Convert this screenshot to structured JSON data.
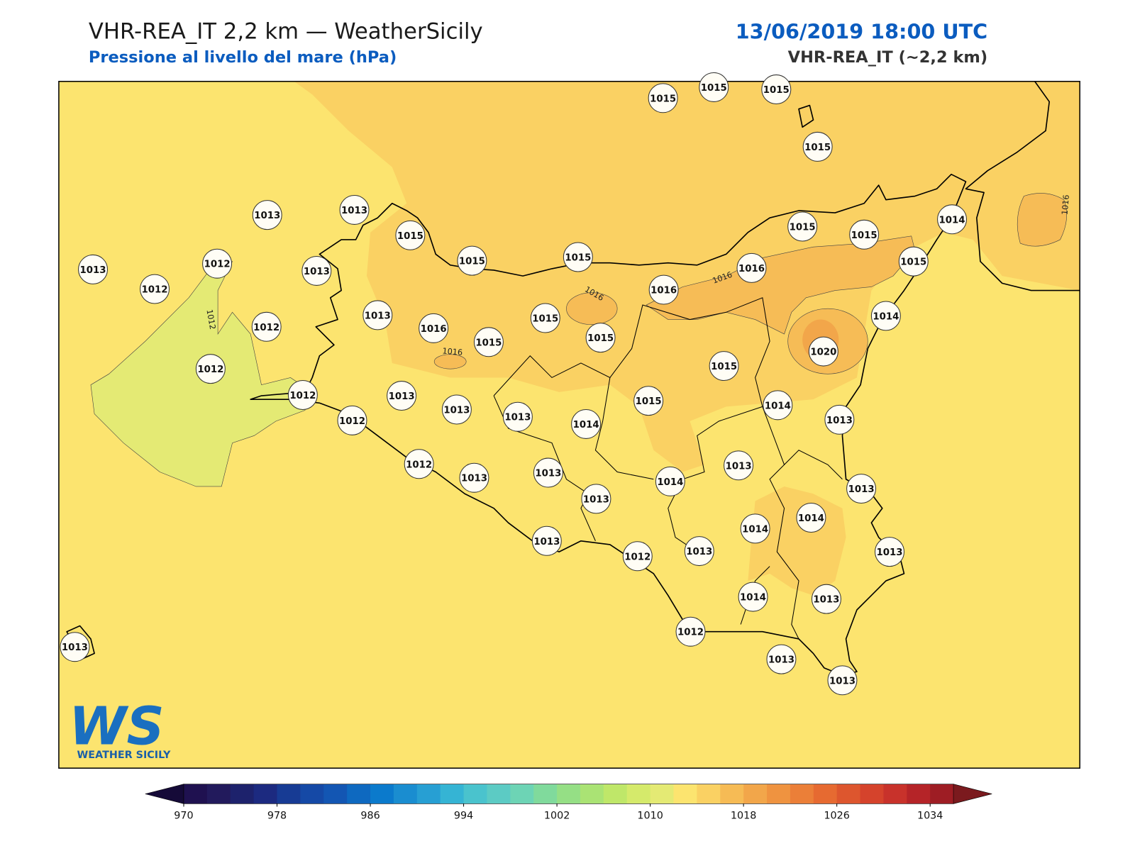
{
  "header": {
    "title": "VHR-REA_IT 2,2 km — WeatherSicily",
    "subtitle": "Pressione al livello del mare (hPa)",
    "datetime": "13/06/2019 18:00 UTC",
    "model": "VHR-REA_IT (~2,2 km)"
  },
  "map": {
    "stations": [
      1015,
      1015,
      1015,
      1015,
      1013,
      1013,
      1015,
      1015,
      1015,
      1015,
      1015,
      1014,
      1015,
      1013,
      1012,
      1012,
      1013,
      1016,
      1016,
      1014,
      1013,
      1012,
      1016,
      1015,
      1015,
      1015,
      1020,
      1012,
      1015,
      1012,
      1013,
      1013,
      1013,
      1014,
      1015,
      1014,
      1013,
      1012,
      1012,
      1013,
      1013,
      1013,
      1014,
      1013,
      1013,
      1014,
      1014,
      1013,
      1012,
      1013,
      1013,
      1014,
      1013,
      1012,
      1013,
      1013,
      1013
    ],
    "contour_labels": [
      "1012",
      "1016",
      "1016",
      "1016",
      "1016"
    ]
  },
  "colorbar": {
    "range": [
      970,
      1036
    ],
    "ticks": [
      970,
      978,
      986,
      994,
      1002,
      1010,
      1018,
      1026,
      1034
    ],
    "colors": [
      "#1f1150",
      "#221a5c",
      "#1d226c",
      "#1c2a80",
      "#173b94",
      "#1549a6",
      "#1356b3",
      "#0e69c0",
      "#0b7acc",
      "#1a8dd0",
      "#279fd3",
      "#35b4d4",
      "#4ac3cd",
      "#5ccbc4",
      "#6dd4b5",
      "#80da9c",
      "#95df85",
      "#aae374",
      "#bfe769",
      "#d5ea6b",
      "#e4ea74",
      "#fce46f",
      "#fad163",
      "#f6bb55",
      "#f2a64a",
      "#ef9340",
      "#eb7f38",
      "#e66a31",
      "#dd562e",
      "#d5432c",
      "#c8322b",
      "#b52428",
      "#9e1d24"
    ],
    "extend_colors": [
      "#150a38",
      "#7b1a1e"
    ]
  },
  "logo": {
    "mark": "WS",
    "text": "WEATHER SICILY"
  }
}
